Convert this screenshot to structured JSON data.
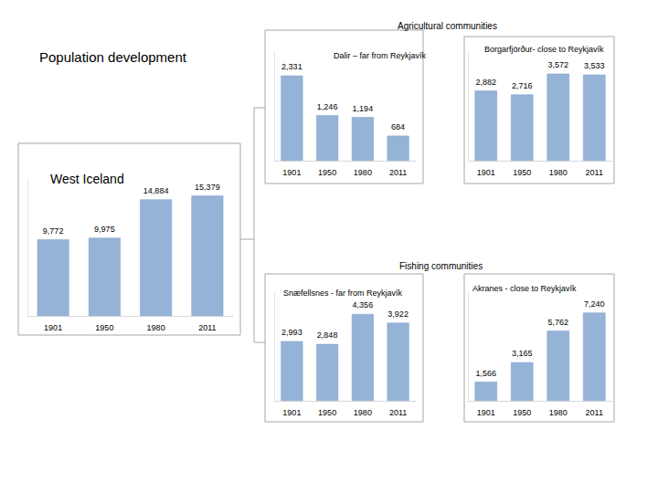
{
  "title": "Population development",
  "sections": [
    "Agricultural communities",
    "Fishing communities"
  ],
  "chart_data": [
    {
      "type": "bar",
      "title": "West Iceland",
      "categories": [
        "1901",
        "1950",
        "1980",
        "2011"
      ],
      "values": [
        9772,
        9975,
        14884,
        15379
      ],
      "value_labels": [
        "9,772",
        "9,975",
        "14,884",
        "15,379"
      ],
      "color": "#95b3d7",
      "ylim": [
        0,
        17500
      ],
      "grid": false,
      "data_labels": true,
      "tick_labels": "x"
    },
    {
      "type": "bar",
      "title": "Dalir – far from Reykjavík",
      "categories": [
        "1901",
        "1950",
        "1980",
        "2011"
      ],
      "values": [
        2331,
        1246,
        1194,
        684
      ],
      "value_labels": [
        "2,331",
        "1,246",
        "1,194",
        "684"
      ],
      "color": "#95b3d7",
      "ylim": [
        0,
        3000
      ],
      "grid": false,
      "data_labels": true,
      "tick_labels": "x"
    },
    {
      "type": "bar",
      "title": "Borgarfjörður- close to Reykjavík",
      "categories": [
        "1901",
        "1950",
        "1980",
        "2011"
      ],
      "values": [
        2882,
        2716,
        3572,
        3533
      ],
      "value_labels": [
        "2,882",
        "2,716",
        "3,572",
        "3,533"
      ],
      "color": "#95b3d7",
      "ylim": [
        0,
        4500
      ],
      "grid": false,
      "data_labels": true,
      "tick_labels": "x"
    },
    {
      "type": "bar",
      "title": "Snæfellsnes - far from Reykjavík",
      "categories": [
        "1901",
        "1950",
        "1980",
        "2011"
      ],
      "values": [
        2993,
        2848,
        4356,
        3922
      ],
      "value_labels": [
        "2,993",
        "2,848",
        "4,356",
        "3,922"
      ],
      "color": "#95b3d7",
      "ylim": [
        0,
        5500
      ],
      "grid": false,
      "data_labels": true,
      "tick_labels": "x"
    },
    {
      "type": "bar",
      "title": "Akranes - close to Reykjavík",
      "categories": [
        "1901",
        "1950",
        "1980",
        "2011"
      ],
      "values": [
        1566,
        3165,
        5762,
        7240
      ],
      "value_labels": [
        "1,566",
        "3,165",
        "5,762",
        "7,240"
      ],
      "color": "#95b3d7",
      "ylim": [
        0,
        9000
      ],
      "grid": false,
      "data_labels": true,
      "tick_labels": "x"
    }
  ]
}
